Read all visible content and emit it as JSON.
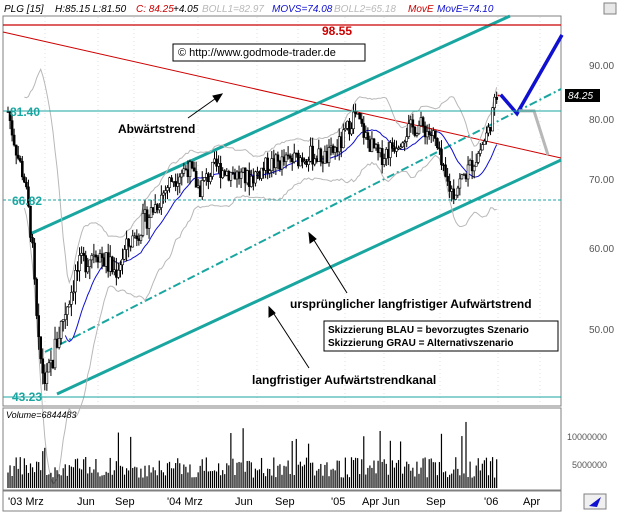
{
  "header": {
    "symbol": "PLG [15]",
    "hl": "H:85.15 L:81.50",
    "close": "C: 84.25",
    "change": "+4.05",
    "boll1": "BOLL1=82.97",
    "movs": "MOVS=74.08",
    "boll2": "BOLL2=65.18",
    "move_red": "MovE",
    "move_blue": "MovE=74.10"
  },
  "colors": {
    "red": "#cc0000",
    "blue": "#1010d0",
    "teal": "#1aa6a0",
    "gray": "#b8b8b8",
    "candle": "#000000",
    "frame": "#808080"
  },
  "chart_data": {
    "type": "line",
    "price_axis": {
      "ticks": [
        "90.00",
        "80.00",
        "70.00",
        "60.00",
        "50.00"
      ]
    },
    "volume_axis": {
      "label": "Volume=6844483",
      "ticks": [
        "10000000",
        "5000000"
      ]
    },
    "x_labels": [
      "'03 Mrz",
      "Jun",
      "Sep",
      "'04 Mrz",
      "Jun",
      "Sep",
      "'05",
      "Apr Jun",
      "Sep",
      "'06",
      "Apr"
    ],
    "levels": {
      "top": "98.55",
      "upper": "81.40",
      "middle": "66.82",
      "low": "43.23"
    },
    "last_price_tag": "84.25",
    "copyright": "© http://www.godmode-trader.de",
    "annotations": {
      "downtrend": "Abwärtstrend",
      "original_uptrend": "ursprünglicher langfristiger Aufwärtstrend",
      "channel": "langfristiger Aufwärtstrendkanal"
    },
    "legend_box": [
      "Skizzierung BLAU = bevorzugtes Szenario",
      "Skizzierung GRAU = Alternativszenario"
    ],
    "scenario_blue": [
      84.5,
      81.0,
      97.0
    ],
    "scenario_gray": [
      81.5,
      74.0
    ],
    "price_path": [
      {
        "t": 0,
        "p": 81.4
      },
      {
        "t": 0.15,
        "p": 78
      },
      {
        "t": 0.35,
        "p": 74
      },
      {
        "t": 0.6,
        "p": 70
      },
      {
        "t": 0.85,
        "p": 62
      },
      {
        "t": 1.1,
        "p": 48
      },
      {
        "t": 1.4,
        "p": 44
      },
      {
        "t": 1.9,
        "p": 50
      },
      {
        "t": 2.5,
        "p": 57
      },
      {
        "t": 3.2,
        "p": 60
      },
      {
        "t": 3.9,
        "p": 57
      },
      {
        "t": 4.5,
        "p": 61
      },
      {
        "t": 5.2,
        "p": 65
      },
      {
        "t": 6.0,
        "p": 70
      },
      {
        "t": 6.6,
        "p": 72
      },
      {
        "t": 7.0,
        "p": 68.5
      },
      {
        "t": 7.6,
        "p": 72
      },
      {
        "t": 8.2,
        "p": 71
      },
      {
        "t": 8.8,
        "p": 70
      },
      {
        "t": 9.6,
        "p": 72.5
      },
      {
        "t": 10.3,
        "p": 73
      },
      {
        "t": 11.0,
        "p": 74
      },
      {
        "t": 11.7,
        "p": 73.5
      },
      {
        "t": 12.2,
        "p": 76
      },
      {
        "t": 12.7,
        "p": 81
      },
      {
        "t": 13.1,
        "p": 77
      },
      {
        "t": 13.6,
        "p": 73.5
      },
      {
        "t": 14.1,
        "p": 75.5
      },
      {
        "t": 14.6,
        "p": 78
      },
      {
        "t": 15.1,
        "p": 79
      },
      {
        "t": 15.6,
        "p": 77
      },
      {
        "t": 16.0,
        "p": 70
      },
      {
        "t": 16.3,
        "p": 68
      },
      {
        "t": 16.7,
        "p": 70.5
      },
      {
        "t": 17.2,
        "p": 74
      },
      {
        "t": 17.6,
        "p": 78
      },
      {
        "t": 17.9,
        "p": 84.2
      }
    ]
  }
}
